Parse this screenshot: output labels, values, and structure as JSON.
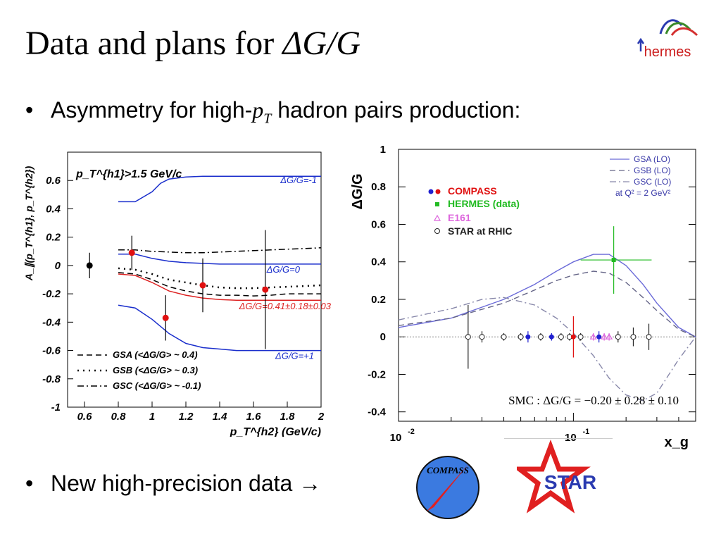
{
  "slide": {
    "title_prefix": "Data and plans for ",
    "title_symbol": "ΔG/G",
    "bullet1_prefix": "Asymmetry for high-",
    "bullet1_pt": "p",
    "bullet1_pt_sub": "T",
    "bullet1_suffix": " hadron pairs production:",
    "bullet2": "New high-precision data →",
    "bullet_char": "•"
  },
  "logos": {
    "hermes_text": "hermes",
    "compass_text": "COMPASS",
    "star_text": "STAR"
  },
  "chart_data": [
    {
      "type": "line",
      "xlabel": "p_T^{h2} (GeV/c)",
      "ylabel": "A_∥(p_T^{h1}, p_T^{h2})",
      "cut_label": "p_T^{h1}>1.5 GeV/c",
      "xlim": [
        0.5,
        2.0
      ],
      "ylim": [
        -1.0,
        0.8
      ],
      "x_ticks": [
        "0.6",
        "0.8",
        "1",
        "1.2",
        "1.4",
        "1.6",
        "1.8",
        "2"
      ],
      "y_ticks": [
        "0.6",
        "0.4",
        "0.2",
        "0",
        "-0.2",
        "-0.4",
        "-0.6",
        "-0.8",
        "-1"
      ],
      "curve_labels": {
        "dg_minus1": "ΔG/G=-1",
        "dg_0": "ΔG/G=0",
        "dg_fit": "ΔG/G=0.41±0.18±0.03",
        "dg_plus1": "ΔG/G=+1"
      },
      "series": [
        {
          "key": "dg_minus1",
          "color": "#1a2ecc",
          "style": "solid",
          "x": [
            0.8,
            0.9,
            1.0,
            1.05,
            1.1,
            1.2,
            1.3,
            1.4,
            1.5,
            1.6,
            1.7,
            1.8,
            1.9,
            2.0
          ],
          "y": [
            0.45,
            0.45,
            0.52,
            0.58,
            0.61,
            0.625,
            0.63,
            0.63,
            0.63,
            0.63,
            0.63,
            0.63,
            0.63,
            0.63
          ]
        },
        {
          "key": "dg_0",
          "color": "#1a2ecc",
          "style": "solid",
          "x": [
            0.8,
            0.9,
            1.0,
            1.1,
            1.2,
            1.3,
            1.4,
            1.5,
            1.6,
            1.7,
            1.8,
            1.9,
            2.0
          ],
          "y": [
            0.08,
            0.08,
            0.05,
            0.03,
            0.02,
            0.015,
            0.01,
            0.01,
            0.01,
            0.01,
            0.01,
            0.01,
            0.01
          ]
        },
        {
          "key": "dg_fit",
          "color": "#dd2222",
          "style": "solid",
          "x": [
            0.8,
            0.9,
            1.0,
            1.1,
            1.2,
            1.3,
            1.4,
            1.5,
            1.6,
            1.7,
            1.8,
            1.9,
            2.0
          ],
          "y": [
            -0.06,
            -0.07,
            -0.12,
            -0.18,
            -0.21,
            -0.23,
            -0.24,
            -0.245,
            -0.245,
            -0.245,
            -0.245,
            -0.245,
            -0.245
          ]
        },
        {
          "key": "dg_plus1",
          "color": "#1a2ecc",
          "style": "solid",
          "x": [
            0.8,
            0.9,
            1.0,
            1.1,
            1.2,
            1.3,
            1.4,
            1.5,
            1.6,
            1.7,
            1.8,
            1.9,
            2.0
          ],
          "y": [
            -0.28,
            -0.3,
            -0.38,
            -0.48,
            -0.55,
            -0.58,
            -0.59,
            -0.6,
            -0.6,
            -0.6,
            -0.6,
            -0.6,
            -0.6
          ]
        },
        {
          "key": "gsa",
          "name": "GSA (<ΔG/G> ~ 0.4)",
          "color": "#000",
          "style": "dashed",
          "x": [
            0.8,
            0.9,
            1.0,
            1.1,
            1.2,
            1.3,
            1.4,
            1.5,
            1.6,
            1.7,
            1.8,
            1.9,
            2.0
          ],
          "y": [
            -0.05,
            -0.06,
            -0.1,
            -0.15,
            -0.18,
            -0.2,
            -0.21,
            -0.21,
            -0.215,
            -0.21,
            -0.2,
            -0.2,
            -0.2
          ]
        },
        {
          "key": "gsb",
          "name": "GSB (<ΔG/G> ~ 0.3)",
          "color": "#000",
          "style": "dotted",
          "x": [
            0.8,
            0.9,
            1.0,
            1.1,
            1.2,
            1.3,
            1.4,
            1.5,
            1.6,
            1.7,
            1.8,
            1.9,
            2.0
          ],
          "y": [
            -0.02,
            -0.03,
            -0.06,
            -0.1,
            -0.12,
            -0.14,
            -0.155,
            -0.16,
            -0.16,
            -0.155,
            -0.15,
            -0.145,
            -0.14
          ]
        },
        {
          "key": "gsc",
          "name": "GSC (<ΔG/G> ~ -0.1)",
          "color": "#000",
          "style": "dashdot",
          "x": [
            0.8,
            0.9,
            1.0,
            1.1,
            1.2,
            1.3,
            1.4,
            1.5,
            1.6,
            1.7,
            1.8,
            1.9,
            2.0
          ],
          "y": [
            0.11,
            0.11,
            0.1,
            0.095,
            0.09,
            0.09,
            0.095,
            0.1,
            0.105,
            0.11,
            0.115,
            0.12,
            0.125
          ]
        }
      ],
      "points": [
        {
          "x": 0.63,
          "y": 0.0,
          "err": 0.09,
          "color": "#000"
        },
        {
          "x": 0.88,
          "y": 0.09,
          "err": 0.12,
          "color": "#e01010"
        },
        {
          "x": 1.08,
          "y": -0.37,
          "err": 0.16,
          "color": "#e01010"
        },
        {
          "x": 1.3,
          "y": -0.14,
          "err": 0.19,
          "color": "#e01010"
        },
        {
          "x": 1.67,
          "y": -0.17,
          "err": 0.42,
          "color": "#e01010"
        }
      ]
    },
    {
      "type": "line",
      "xlabel": "x_g",
      "ylabel": "ΔG/G",
      "xscale": "log",
      "xlim": [
        0.01,
        0.5
      ],
      "ylim": [
        -0.45,
        1.0
      ],
      "x_ticks": [
        {
          "v": 0.01,
          "base": "10",
          "exp": "-2"
        },
        {
          "v": 0.1,
          "base": "10",
          "exp": "-1"
        }
      ],
      "y_ticks": [
        "1",
        "0.8",
        "0.6",
        "0.4",
        "0.2",
        "0",
        "-0.2",
        "-0.4"
      ],
      "legend_curves": [
        "GSA (LO)",
        "GSB (LO)",
        "GSC (LO)",
        "at Q² = 2 GeV²"
      ],
      "legend_points": [
        "COMPASS",
        "HERMES (data)",
        "E161",
        "STAR at RHIC"
      ],
      "smc_label": "SMC :  ΔG/G = −0.20 ± 0.28 ± 0.10",
      "series": [
        {
          "key": "gsa",
          "color": "#6a6ad8",
          "style": "solid",
          "x": [
            0.01,
            0.02,
            0.04,
            0.06,
            0.08,
            0.1,
            0.13,
            0.16,
            0.2,
            0.25,
            0.3,
            0.4,
            0.5
          ],
          "y": [
            0.05,
            0.1,
            0.2,
            0.28,
            0.35,
            0.4,
            0.44,
            0.44,
            0.38,
            0.28,
            0.18,
            0.05,
            0.0
          ]
        },
        {
          "key": "gsb",
          "color": "#666688",
          "style": "dashed",
          "x": [
            0.01,
            0.02,
            0.04,
            0.06,
            0.08,
            0.1,
            0.13,
            0.16,
            0.2,
            0.25,
            0.3,
            0.4,
            0.5
          ],
          "y": [
            0.06,
            0.1,
            0.18,
            0.25,
            0.3,
            0.33,
            0.35,
            0.34,
            0.29,
            0.21,
            0.14,
            0.04,
            0.0
          ]
        },
        {
          "key": "gsc",
          "color": "#8888aa",
          "style": "dashdot",
          "x": [
            0.01,
            0.02,
            0.03,
            0.04,
            0.06,
            0.08,
            0.1,
            0.13,
            0.16,
            0.2,
            0.25,
            0.3,
            0.4,
            0.5
          ],
          "y": [
            0.09,
            0.15,
            0.2,
            0.21,
            0.17,
            0.1,
            0.02,
            -0.1,
            -0.22,
            -0.31,
            -0.34,
            -0.3,
            -0.12,
            0.0
          ]
        }
      ],
      "points": [
        {
          "x": 0.025,
          "y": 0.0,
          "err": 0.17,
          "color": "#333",
          "shape": "circle-open"
        },
        {
          "x": 0.03,
          "y": 0.0,
          "err": 0.03,
          "color": "#333",
          "shape": "circle-open"
        },
        {
          "x": 0.04,
          "y": 0.0,
          "err": 0.02,
          "color": "#333",
          "shape": "circle-open"
        },
        {
          "x": 0.05,
          "y": 0.0,
          "err": 0.02,
          "color": "#333",
          "shape": "circle-open"
        },
        {
          "x": 0.055,
          "y": 0.0,
          "err": 0.03,
          "color": "#2020d0",
          "shape": "circle"
        },
        {
          "x": 0.065,
          "y": 0.0,
          "err": 0.02,
          "color": "#333",
          "shape": "circle-open"
        },
        {
          "x": 0.075,
          "y": 0.0,
          "err": 0.02,
          "color": "#2020d0",
          "shape": "circle"
        },
        {
          "x": 0.085,
          "y": 0.0,
          "err": 0.02,
          "color": "#333",
          "shape": "circle-open"
        },
        {
          "x": 0.095,
          "y": 0.0,
          "err": 0.02,
          "color": "#333",
          "shape": "circle-open"
        },
        {
          "x": 0.1,
          "y": 0.0,
          "err": 0.11,
          "color": "#e01010",
          "shape": "circle"
        },
        {
          "x": 0.11,
          "y": 0.0,
          "err": 0.02,
          "color": "#333",
          "shape": "circle-open"
        },
        {
          "x": 0.13,
          "y": 0.0,
          "err": 0.02,
          "color": "#dd66dd",
          "shape": "triangle"
        },
        {
          "x": 0.14,
          "y": 0.0,
          "err": 0.03,
          "color": "#2020d0",
          "shape": "circle"
        },
        {
          "x": 0.15,
          "y": 0.0,
          "err": 0.02,
          "color": "#dd66dd",
          "shape": "triangle"
        },
        {
          "x": 0.16,
          "y": 0.0,
          "err": 0.02,
          "color": "#dd66dd",
          "shape": "triangle"
        },
        {
          "x": 0.18,
          "y": 0.0,
          "err": 0.03,
          "color": "#333",
          "shape": "circle-open"
        },
        {
          "x": 0.22,
          "y": 0.0,
          "err": 0.05,
          "color": "#333",
          "shape": "circle-open"
        },
        {
          "x": 0.27,
          "y": 0.0,
          "err": 0.07,
          "color": "#333",
          "shape": "circle-open"
        },
        {
          "x": 0.17,
          "y": 0.41,
          "err": 0.18,
          "xerr": [
            0.11,
            0.28
          ],
          "color": "#22bb22",
          "shape": "square"
        }
      ]
    }
  ]
}
